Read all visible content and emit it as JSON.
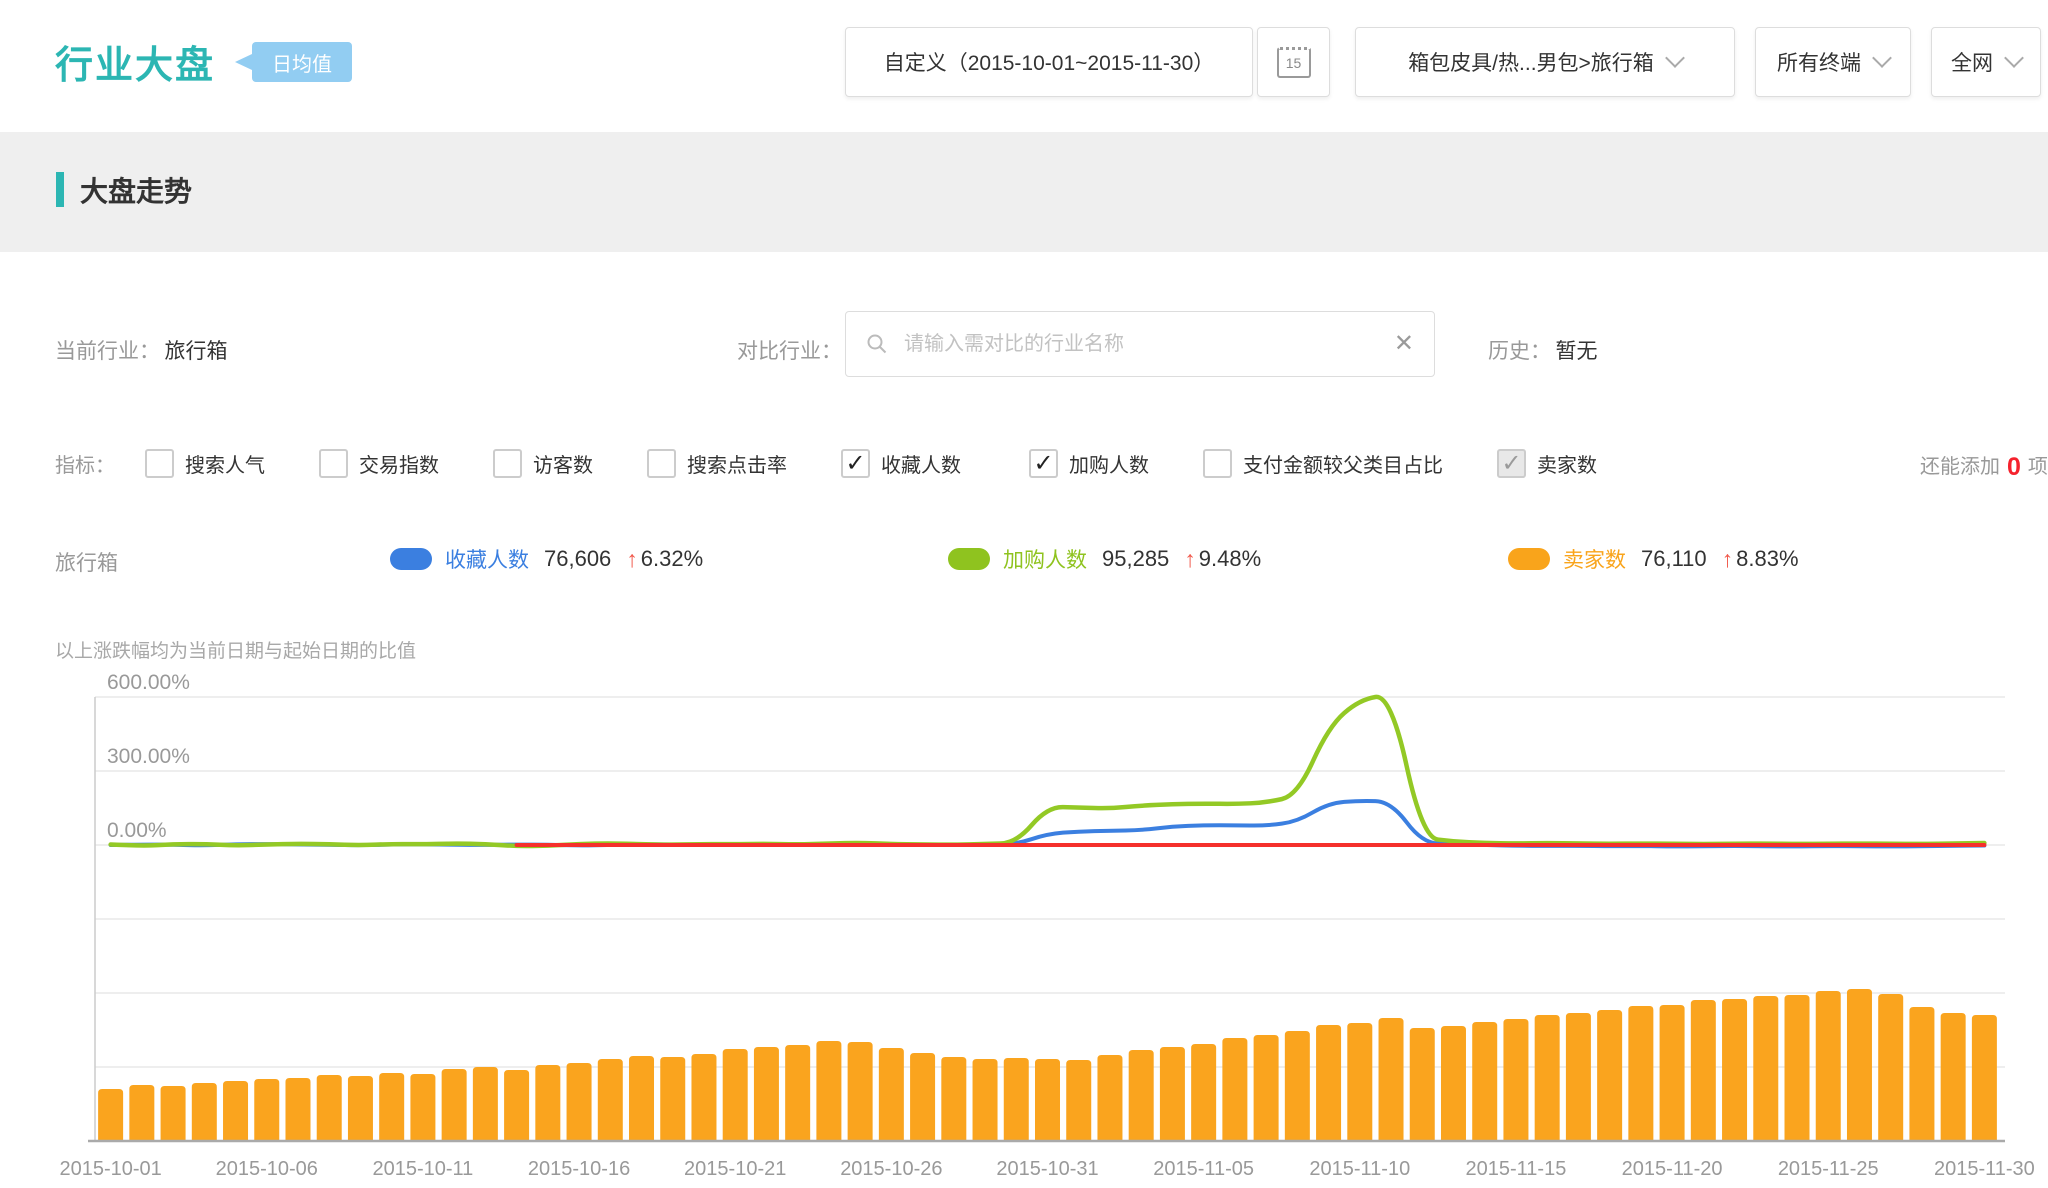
{
  "header": {
    "title": "行业大盘",
    "badge": "日均值",
    "date_label": "自定义（2015-10-01~2015-11-30）",
    "calendar_day": "15",
    "category": "箱包皮具/热...男包>旅行箱",
    "terminal": "所有终端",
    "network": "全网"
  },
  "section": {
    "title": "大盘走势"
  },
  "filters": {
    "current_label": "当前行业：",
    "current_value": "旅行箱",
    "compare_label": "对比行业：",
    "compare_placeholder": "请输入需对比的行业名称",
    "clear_icon": "✕",
    "history_label": "历史：",
    "history_value": "暂无"
  },
  "metrics": {
    "label": "指标：",
    "items": [
      {
        "label": "搜索人气",
        "checked": false,
        "disabled": false
      },
      {
        "label": "交易指数",
        "checked": false,
        "disabled": false
      },
      {
        "label": "访客数",
        "checked": false,
        "disabled": false
      },
      {
        "label": "搜索点击率",
        "checked": false,
        "disabled": false
      },
      {
        "label": "收藏人数",
        "checked": true,
        "disabled": false
      },
      {
        "label": "加购人数",
        "checked": true,
        "disabled": false
      },
      {
        "label": "支付金额较父类目占比",
        "checked": false,
        "disabled": false
      },
      {
        "label": "卖家数",
        "checked": true,
        "disabled": true
      }
    ],
    "remain_prefix": "还能添加",
    "remain_count": "0",
    "remain_suffix": "项"
  },
  "legend": {
    "industry": "旅行箱",
    "items": [
      {
        "label": "收藏人数",
        "color": "#3b7fe0",
        "value": "76,606",
        "change": "6.32%"
      },
      {
        "label": "加购人数",
        "color": "#8fc31f",
        "value": "95,285",
        "change": "9.48%"
      },
      {
        "label": "卖家数",
        "color": "#f9a41b",
        "value": "76,110",
        "change": "8.83%"
      }
    ]
  },
  "note": "以上涨跌幅均为当前日期与起始日期的比值",
  "chart_data": {
    "type": "line+bar",
    "x_start": "2015-10-01",
    "x_end": "2015-11-30",
    "days": 61,
    "y_axis": {
      "ticks": [
        "600.00%",
        "300.00%",
        "0.00%"
      ],
      "tick_values": [
        600,
        300,
        0
      ],
      "unit": "percent change vs start date"
    },
    "x_tick_indices": [
      0,
      5,
      10,
      15,
      20,
      25,
      30,
      35,
      40,
      45,
      50,
      55,
      60
    ],
    "x_tick_labels": [
      "2015-10-01",
      "2015-10-06",
      "2015-10-11",
      "2015-10-16",
      "2015-10-21",
      "2015-10-26",
      "2015-10-31",
      "2015-11-05",
      "2015-11-10",
      "2015-11-15",
      "2015-11-20",
      "2015-11-25",
      "2015-11-30"
    ],
    "line_series": [
      {
        "name": "收藏人数",
        "color": "#3b7fe0",
        "width": 4,
        "values": [
          0,
          2,
          1,
          -2,
          3,
          4,
          2,
          1,
          -1,
          2,
          3,
          1,
          0,
          2,
          1,
          -2,
          0,
          3,
          2,
          1,
          0,
          2,
          4,
          3,
          1,
          2,
          0,
          1,
          2,
          3,
          45,
          55,
          58,
          60,
          75,
          80,
          80,
          78,
          95,
          170,
          180,
          176,
          8,
          4,
          0,
          -3,
          -4,
          -3,
          -5,
          -4,
          -6,
          -5,
          -4,
          -5,
          -6,
          -4,
          -5,
          -6,
          -5,
          -3,
          -2
        ]
      },
      {
        "name": "加购人数",
        "color": "#93c925",
        "width": 4.5,
        "values": [
          2,
          -4,
          3,
          4,
          -2,
          2,
          5,
          3,
          -1,
          4,
          3,
          6,
          4,
          -5,
          -3,
          4,
          7,
          3,
          1,
          4,
          3,
          5,
          2,
          6,
          9,
          4,
          2,
          1,
          4,
          8,
          155,
          152,
          148,
          160,
          165,
          168,
          166,
          172,
          200,
          480,
          590,
          610,
          30,
          14,
          8,
          6,
          8,
          6,
          5,
          6,
          5,
          4,
          5,
          6,
          4,
          5,
          6,
          5,
          4,
          6,
          8
        ]
      },
      {
        "name": "卖家数",
        "color": "#f5302c",
        "width": 4,
        "values": [
          null,
          null,
          null,
          null,
          null,
          null,
          null,
          null,
          null,
          null,
          null,
          null,
          null,
          0,
          0,
          0,
          0,
          0,
          0,
          0,
          0,
          0,
          0,
          0,
          0,
          0,
          0,
          0,
          0,
          0,
          0,
          0,
          0,
          0,
          0,
          0,
          0,
          0,
          0,
          0,
          0,
          0,
          0,
          0,
          0,
          0,
          0,
          0,
          0,
          0,
          0,
          0,
          0,
          0,
          0,
          0,
          0,
          0,
          0,
          0,
          0
        ]
      }
    ],
    "bar_series": {
      "name": "卖家数",
      "color": "#faa41e",
      "unit": "relative daily value",
      "values": [
        52,
        56,
        55,
        58,
        60,
        62,
        63,
        66,
        65,
        68,
        67,
        72,
        74,
        71,
        76,
        78,
        82,
        85,
        84,
        87,
        92,
        94,
        96,
        100,
        99,
        93,
        88,
        84,
        82,
        83,
        82,
        81,
        86,
        91,
        94,
        97,
        103,
        106,
        110,
        116,
        118,
        123,
        113,
        115,
        119,
        122,
        126,
        128,
        131,
        135,
        136,
        141,
        142,
        145,
        146,
        150,
        152,
        147,
        134,
        128,
        126
      ]
    }
  }
}
